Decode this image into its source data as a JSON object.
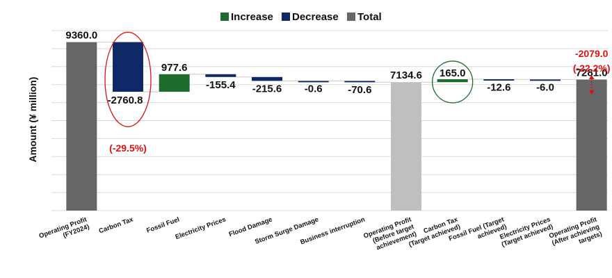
{
  "chart_data": {
    "type": "waterfall",
    "ylabel": "Amount (¥ million)",
    "ylim": [
      0,
      10000
    ],
    "legend": {
      "placement": "top-center",
      "entries": [
        {
          "label": "Increase",
          "color": "#1e6b2e"
        },
        {
          "label": "Decrease",
          "color": "#0d2a66"
        },
        {
          "label": "Total",
          "color": "#666666"
        }
      ]
    },
    "categories": [
      [
        "Operating Profit",
        "(FY2024)"
      ],
      [
        "Carbon Tax"
      ],
      [
        "Fossil Fuel"
      ],
      [
        "Electricity Prices"
      ],
      [
        "Flood Damage"
      ],
      [
        "Storm Surge Damage"
      ],
      [
        "Business interruption"
      ],
      [
        "Operating Profit",
        "(Before target",
        "achievement)"
      ],
      [
        "Carbon Tax",
        "(Target achieved)"
      ],
      [
        "Fossil Fuel (Target",
        "achieved)"
      ],
      [
        "Electricity Prices",
        "(Target achieved)"
      ],
      [
        "Operating Profit",
        "(After achieving",
        "targets)"
      ]
    ],
    "values": [
      9360.0,
      -2760.8,
      977.6,
      -155.4,
      -215.6,
      -0.6,
      -70.6,
      7134.6,
      165.0,
      -12.6,
      -6.0,
      7281.0
    ],
    "labels": [
      "9360.0",
      "-2760.8",
      "977.6",
      "-155.4",
      "-215.6",
      "-0.6",
      "-70.6",
      "7134.6",
      "165.0",
      "-12.6",
      "-6.0",
      "7281.0"
    ],
    "kinds": [
      "total",
      "decrease",
      "increase",
      "decrease",
      "decrease",
      "decrease",
      "decrease",
      "total-light",
      "increase",
      "decrease",
      "decrease",
      "total"
    ],
    "annotations": {
      "carbon_tax_pct": "(-29.5%)",
      "final_diff": "-2079.0",
      "final_diff_pct": "(-22.2%)"
    },
    "colors": {
      "increase": "#1e6b2e",
      "decrease": "#0d2a66",
      "total": "#666666",
      "total_light": "#bfbfbf",
      "highlight_red": "#e01010",
      "highlight_green": "#1e6b2e"
    }
  }
}
